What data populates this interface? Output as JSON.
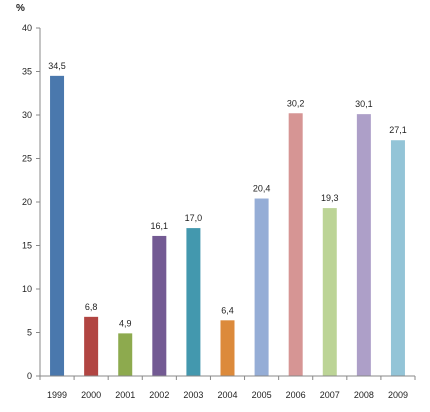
{
  "chart_data": {
    "type": "bar",
    "categories": [
      "1999",
      "2000",
      "2001",
      "2002",
      "2003",
      "2004",
      "2005",
      "2006",
      "2007",
      "2008",
      "2009"
    ],
    "values": [
      34.5,
      6.8,
      4.9,
      16.1,
      17.0,
      6.4,
      20.4,
      30.2,
      19.3,
      30.1,
      27.1
    ],
    "data_labels": [
      "34,5",
      "6,8",
      "4,9",
      "16,1",
      "17,0",
      "6,4",
      "20,4",
      "30,2",
      "19,3",
      "30,1",
      "27,1"
    ],
    "bar_colors": [
      "#4a78ad",
      "#b14542",
      "#8daa4e",
      "#735a93",
      "#4398ae",
      "#dc8a3b",
      "#95add6",
      "#d69594",
      "#bcd496",
      "#ad9fc8",
      "#93c4d7"
    ],
    "y_ticks": [
      "0",
      "5",
      "10",
      "15",
      "20",
      "25",
      "30",
      "35",
      "40"
    ],
    "ylim": [
      0,
      40
    ],
    "yunit": "%",
    "grid": false,
    "legend": "none"
  }
}
